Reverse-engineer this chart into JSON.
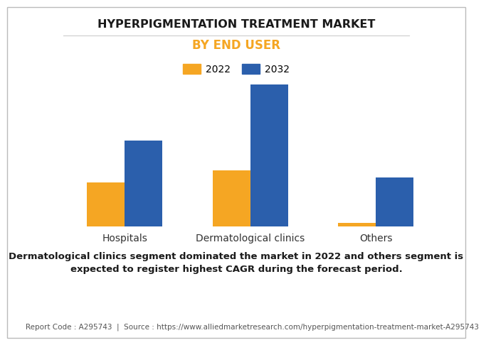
{
  "title": "HYPERPIGMENTATION TREATMENT MARKET",
  "subtitle": "BY END USER",
  "categories": [
    "Hospitals",
    "Dermatological clinics",
    "Others"
  ],
  "series": [
    {
      "label": "2022",
      "color": "#F5A623",
      "values": [
        1.8,
        2.3,
        0.15
      ]
    },
    {
      "label": "2032",
      "color": "#2B5FAC",
      "values": [
        3.5,
        5.8,
        2.0
      ]
    }
  ],
  "ylim": [
    0,
    6.5
  ],
  "bar_width": 0.3,
  "background_color": "#FFFFFF",
  "grid_color": "#CCCCCC",
  "title_fontsize": 11.5,
  "subtitle_fontsize": 12,
  "subtitle_color": "#F5A623",
  "tick_label_fontsize": 10,
  "legend_fontsize": 10,
  "footer_text": "Dermatological clinics segment dominated the market in 2022 and others segment is\nexpected to register highest CAGR during the forecast period.",
  "source_text": "Report Code : A295743  |  Source : https://www.alliedmarketresearch.com/hyperpigmentation-treatment-market-A295743",
  "footer_fontsize": 9.5,
  "source_fontsize": 7.5,
  "separator_color": "#CCCCCC"
}
